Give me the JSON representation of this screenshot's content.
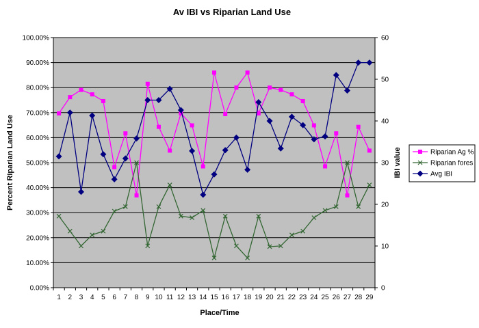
{
  "chart_data": {
    "type": "line",
    "title": "Av IBI vs Riparian Land Use",
    "xlabel": "Place/Time",
    "ylabel": "Percent Riparian Land Use",
    "y2label": "IBI value",
    "categories": [
      "1",
      "2",
      "3",
      "4",
      "5",
      "6",
      "7",
      "8",
      "9",
      "10",
      "11",
      "12",
      "13",
      "14",
      "15",
      "16",
      "17",
      "18",
      "19",
      "20",
      "21",
      "22",
      "23",
      "24",
      "25",
      "26",
      "27",
      "28",
      "29"
    ],
    "y_ticks": [
      "0.00%",
      "10.00%",
      "20.00%",
      "30.00%",
      "40.00%",
      "50.00%",
      "60.00%",
      "70.00%",
      "80.00%",
      "90.00%",
      "100.00%"
    ],
    "y2_ticks": [
      "0",
      "10",
      "20",
      "30",
      "40",
      "50",
      "60"
    ],
    "ylim": [
      0,
      1
    ],
    "y2lim": [
      0,
      60
    ],
    "grid": true,
    "legend_position": "right",
    "plot_background": "#c0c0c0",
    "series": [
      {
        "name": "Riparian Ag %",
        "axis": "left",
        "color": "#ff00ff",
        "marker": "square",
        "values": [
          0.697,
          0.762,
          0.791,
          0.773,
          0.746,
          0.482,
          0.617,
          0.369,
          0.815,
          0.643,
          0.548,
          0.697,
          0.649,
          0.485,
          0.86,
          0.694,
          0.8,
          0.86,
          0.697,
          0.8,
          0.791,
          0.773,
          0.746,
          0.649,
          0.485,
          0.617,
          0.369,
          0.643,
          0.548
        ]
      },
      {
        "name": "Riparian fores",
        "axis": "left",
        "color": "#336633",
        "marker": "x",
        "values": [
          0.286,
          0.226,
          0.167,
          0.211,
          0.226,
          0.306,
          0.324,
          0.5,
          0.167,
          0.324,
          0.411,
          0.286,
          0.28,
          0.309,
          0.119,
          0.286,
          0.167,
          0.119,
          0.286,
          0.164,
          0.167,
          0.211,
          0.226,
          0.28,
          0.309,
          0.324,
          0.5,
          0.324,
          0.411
        ]
      },
      {
        "name": "Avg IBI",
        "axis": "right",
        "color": "#000080",
        "marker": "diamond",
        "values": [
          31.5,
          42,
          23,
          41.3,
          32,
          26,
          31,
          35.8,
          45,
          45,
          47.7,
          42.6,
          32.8,
          22.3,
          27.2,
          33,
          36,
          28.3,
          44.5,
          40,
          33.4,
          41,
          39,
          35.6,
          36.3,
          51,
          47.3,
          54,
          54
        ]
      }
    ]
  }
}
